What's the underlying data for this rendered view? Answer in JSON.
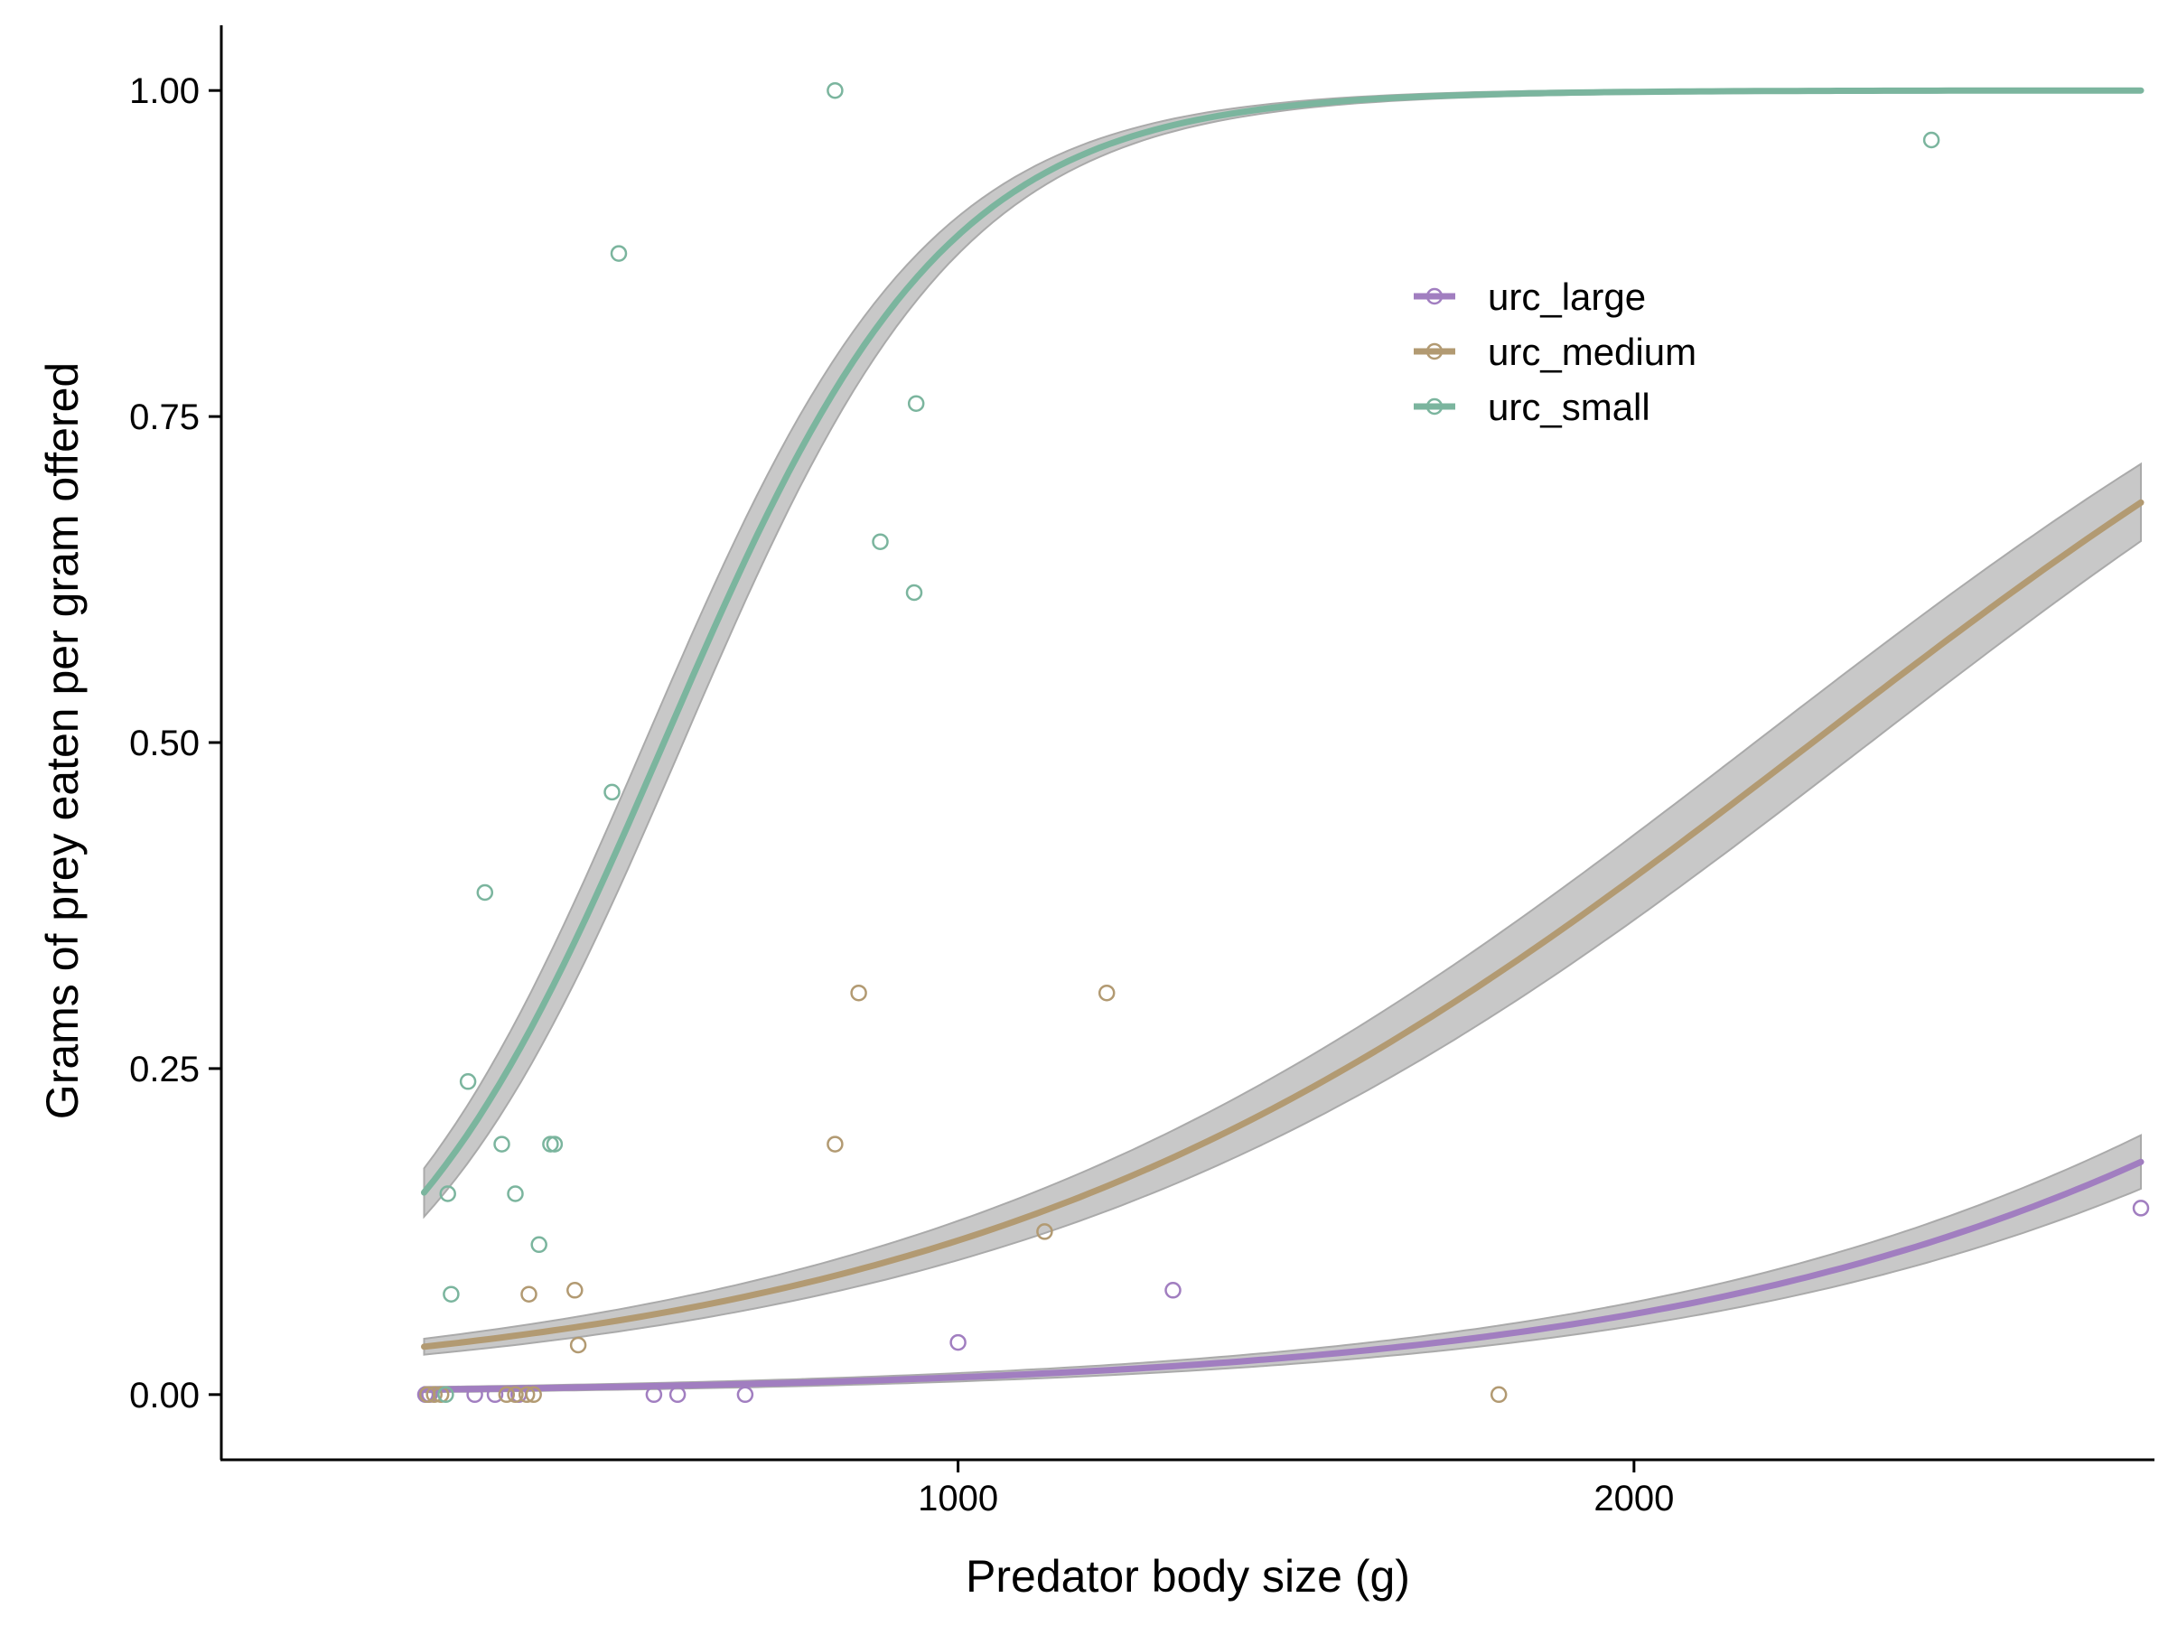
{
  "chart_data": {
    "type": "scatter",
    "title": "",
    "xlabel": "Predator body size (g)",
    "ylabel": "Grams of prey eaten per gram offered",
    "xlim": [
      -90,
      2770
    ],
    "ylim": [
      -0.05,
      1.05
    ],
    "xticks": [
      1000,
      2000
    ],
    "yticks": [
      0,
      0.25,
      0.5,
      0.75,
      1.0
    ],
    "xtick_labels": [
      "1000",
      "2000"
    ],
    "ytick_labels": [
      "0.00",
      "0.25",
      "0.50",
      "0.75",
      "1.00"
    ],
    "grid": false,
    "legend_position": "top-right",
    "series": [
      {
        "name": "urc_large",
        "color": "#a17ec0",
        "fit": {
          "x_start": 210,
          "x_end": 2750,
          "b0": -5.9,
          "b1": 0.00159
        },
        "points": [
          {
            "x": 212,
            "y": 0.0
          },
          {
            "x": 218,
            "y": 0.0
          },
          {
            "x": 285,
            "y": 0.0
          },
          {
            "x": 315,
            "y": 0.0
          },
          {
            "x": 350,
            "y": 0.0
          },
          {
            "x": 550,
            "y": 0.0
          },
          {
            "x": 585,
            "y": 0.0
          },
          {
            "x": 685,
            "y": 0.0
          },
          {
            "x": 1000,
            "y": 0.04
          },
          {
            "x": 1318,
            "y": 0.08
          },
          {
            "x": 2750,
            "y": 0.143
          }
        ]
      },
      {
        "name": "urc_medium",
        "color": "#b29a72",
        "fit": {
          "x_start": 210,
          "x_end": 2750,
          "b0": -3.6,
          "b1": 0.00159
        },
        "points": [
          {
            "x": 215,
            "y": 0.0
          },
          {
            "x": 225,
            "y": 0.0
          },
          {
            "x": 235,
            "y": 0.0
          },
          {
            "x": 332,
            "y": 0.0
          },
          {
            "x": 345,
            "y": 0.0
          },
          {
            "x": 362,
            "y": 0.0
          },
          {
            "x": 372,
            "y": 0.0
          },
          {
            "x": 365,
            "y": 0.077
          },
          {
            "x": 433,
            "y": 0.08
          },
          {
            "x": 438,
            "y": 0.038
          },
          {
            "x": 818,
            "y": 0.192
          },
          {
            "x": 853,
            "y": 0.308
          },
          {
            "x": 1128,
            "y": 0.125
          },
          {
            "x": 1220,
            "y": 0.308
          },
          {
            "x": 1800,
            "y": 0.0
          }
        ]
      },
      {
        "name": "urc_small",
        "color": "#7bb59e",
        "fit": {
          "x_start": 210,
          "x_end": 2750,
          "b0": -2.7,
          "b1": 0.00478
        },
        "points": [
          {
            "x": 242,
            "y": 0.0
          },
          {
            "x": 250,
            "y": 0.077
          },
          {
            "x": 245,
            "y": 0.154
          },
          {
            "x": 275,
            "y": 0.24
          },
          {
            "x": 300,
            "y": 0.385
          },
          {
            "x": 325,
            "y": 0.192
          },
          {
            "x": 345,
            "y": 0.154
          },
          {
            "x": 380,
            "y": 0.115
          },
          {
            "x": 397,
            "y": 0.192
          },
          {
            "x": 403,
            "y": 0.192
          },
          {
            "x": 488,
            "y": 0.462
          },
          {
            "x": 498,
            "y": 0.875
          },
          {
            "x": 818,
            "y": 1.0
          },
          {
            "x": 885,
            "y": 0.654
          },
          {
            "x": 935,
            "y": 0.615
          },
          {
            "x": 938,
            "y": 0.76
          },
          {
            "x": 2440,
            "y": 0.962
          }
        ]
      }
    ]
  }
}
